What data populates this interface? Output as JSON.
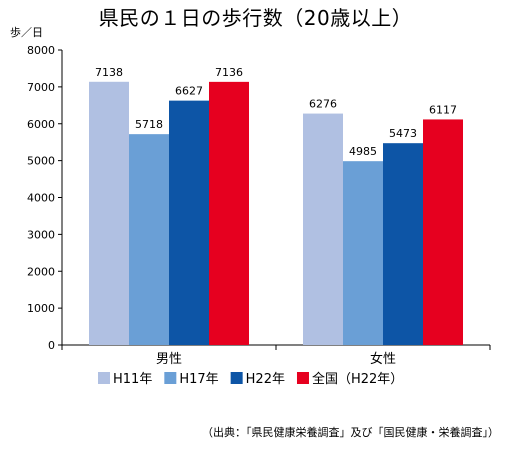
{
  "chart_data": {
    "type": "bar",
    "title": "県民の１日の歩行数（20歳以上）",
    "ylabel": "歩／日",
    "xlabel": "",
    "categories": [
      "男性",
      "女性"
    ],
    "series": [
      {
        "name": "H11年",
        "color": "#b0c0e2",
        "values": [
          7138,
          6276
        ]
      },
      {
        "name": "H17年",
        "color": "#6a9fd6",
        "values": [
          5718,
          4985
        ]
      },
      {
        "name": "H22年",
        "color": "#0d55a6",
        "values": [
          6627,
          5473
        ]
      },
      {
        "name": "全国（H22年）",
        "color": "#e6001f",
        "values": [
          7136,
          6117
        ]
      }
    ],
    "ylim": [
      0,
      8000
    ],
    "yticks": [
      0,
      1000,
      2000,
      3000,
      4000,
      5000,
      6000,
      7000,
      8000
    ],
    "grid": false,
    "legend_position": "bottom",
    "source": "（出典：「県民健康栄養調査」及び「国民健康・栄養調査」）"
  }
}
